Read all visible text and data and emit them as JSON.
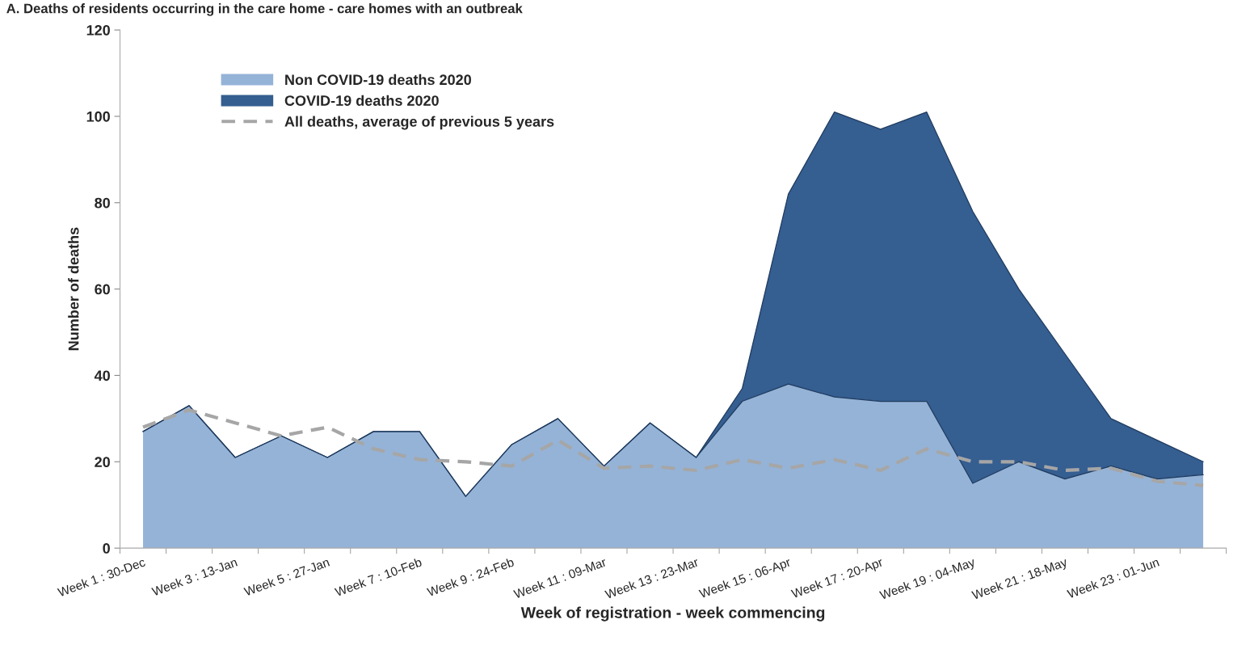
{
  "chart_data": {
    "type": "area",
    "stacked": true,
    "title": "A. Deaths of residents occurring in the care home - care homes with an outbreak",
    "xlabel": "Week of registration - week commencing",
    "ylabel": "Number of deaths",
    "categories": [
      "Week 1 : 30-Dec",
      null,
      "Week 3 : 13-Jan",
      null,
      "Week 5 : 27-Jan",
      null,
      "Week 7 : 10-Feb",
      null,
      "Week 9 : 24-Feb",
      null,
      "Week 11 : 09-Mar",
      null,
      "Week 13 : 23-Mar",
      null,
      "Week 15 : 06-Apr",
      null,
      "Week 17 : 20-Apr",
      null,
      "Week 19 : 04-May",
      null,
      "Week 21 : 18-May",
      null,
      "Week 23 : 01-Jun",
      null
    ],
    "series": [
      {
        "name": "Non COVID-19 deaths 2020",
        "color": "#95b3d7",
        "values": [
          27,
          33,
          21,
          26,
          21,
          27,
          27,
          12,
          24,
          30,
          19,
          29,
          21,
          34,
          38,
          35,
          34,
          34,
          15,
          20,
          16,
          19,
          16,
          17
        ]
      },
      {
        "name": "COVID-19 deaths 2020",
        "color": "#355e91",
        "values": [
          0,
          0,
          0,
          0,
          0,
          0,
          0,
          0,
          0,
          0,
          0,
          0,
          0,
          3,
          44,
          66,
          63,
          67,
          63,
          40,
          29,
          11,
          9,
          3
        ]
      },
      {
        "name": "All deaths, average of previous 5 years",
        "type": "line",
        "line_style": "dashed",
        "color": "#a6a6a6",
        "values": [
          28,
          32,
          29,
          26,
          28,
          23,
          20.5,
          20,
          19,
          25,
          18.5,
          19,
          18,
          20.5,
          18.5,
          20.5,
          18,
          23,
          20,
          20,
          18,
          18.5,
          15.5,
          14.5
        ]
      }
    ],
    "ylim": [
      0,
      120
    ],
    "yticks": [
      0,
      20,
      40,
      60,
      80,
      100,
      120
    ],
    "grid": false,
    "legend": "top left"
  }
}
